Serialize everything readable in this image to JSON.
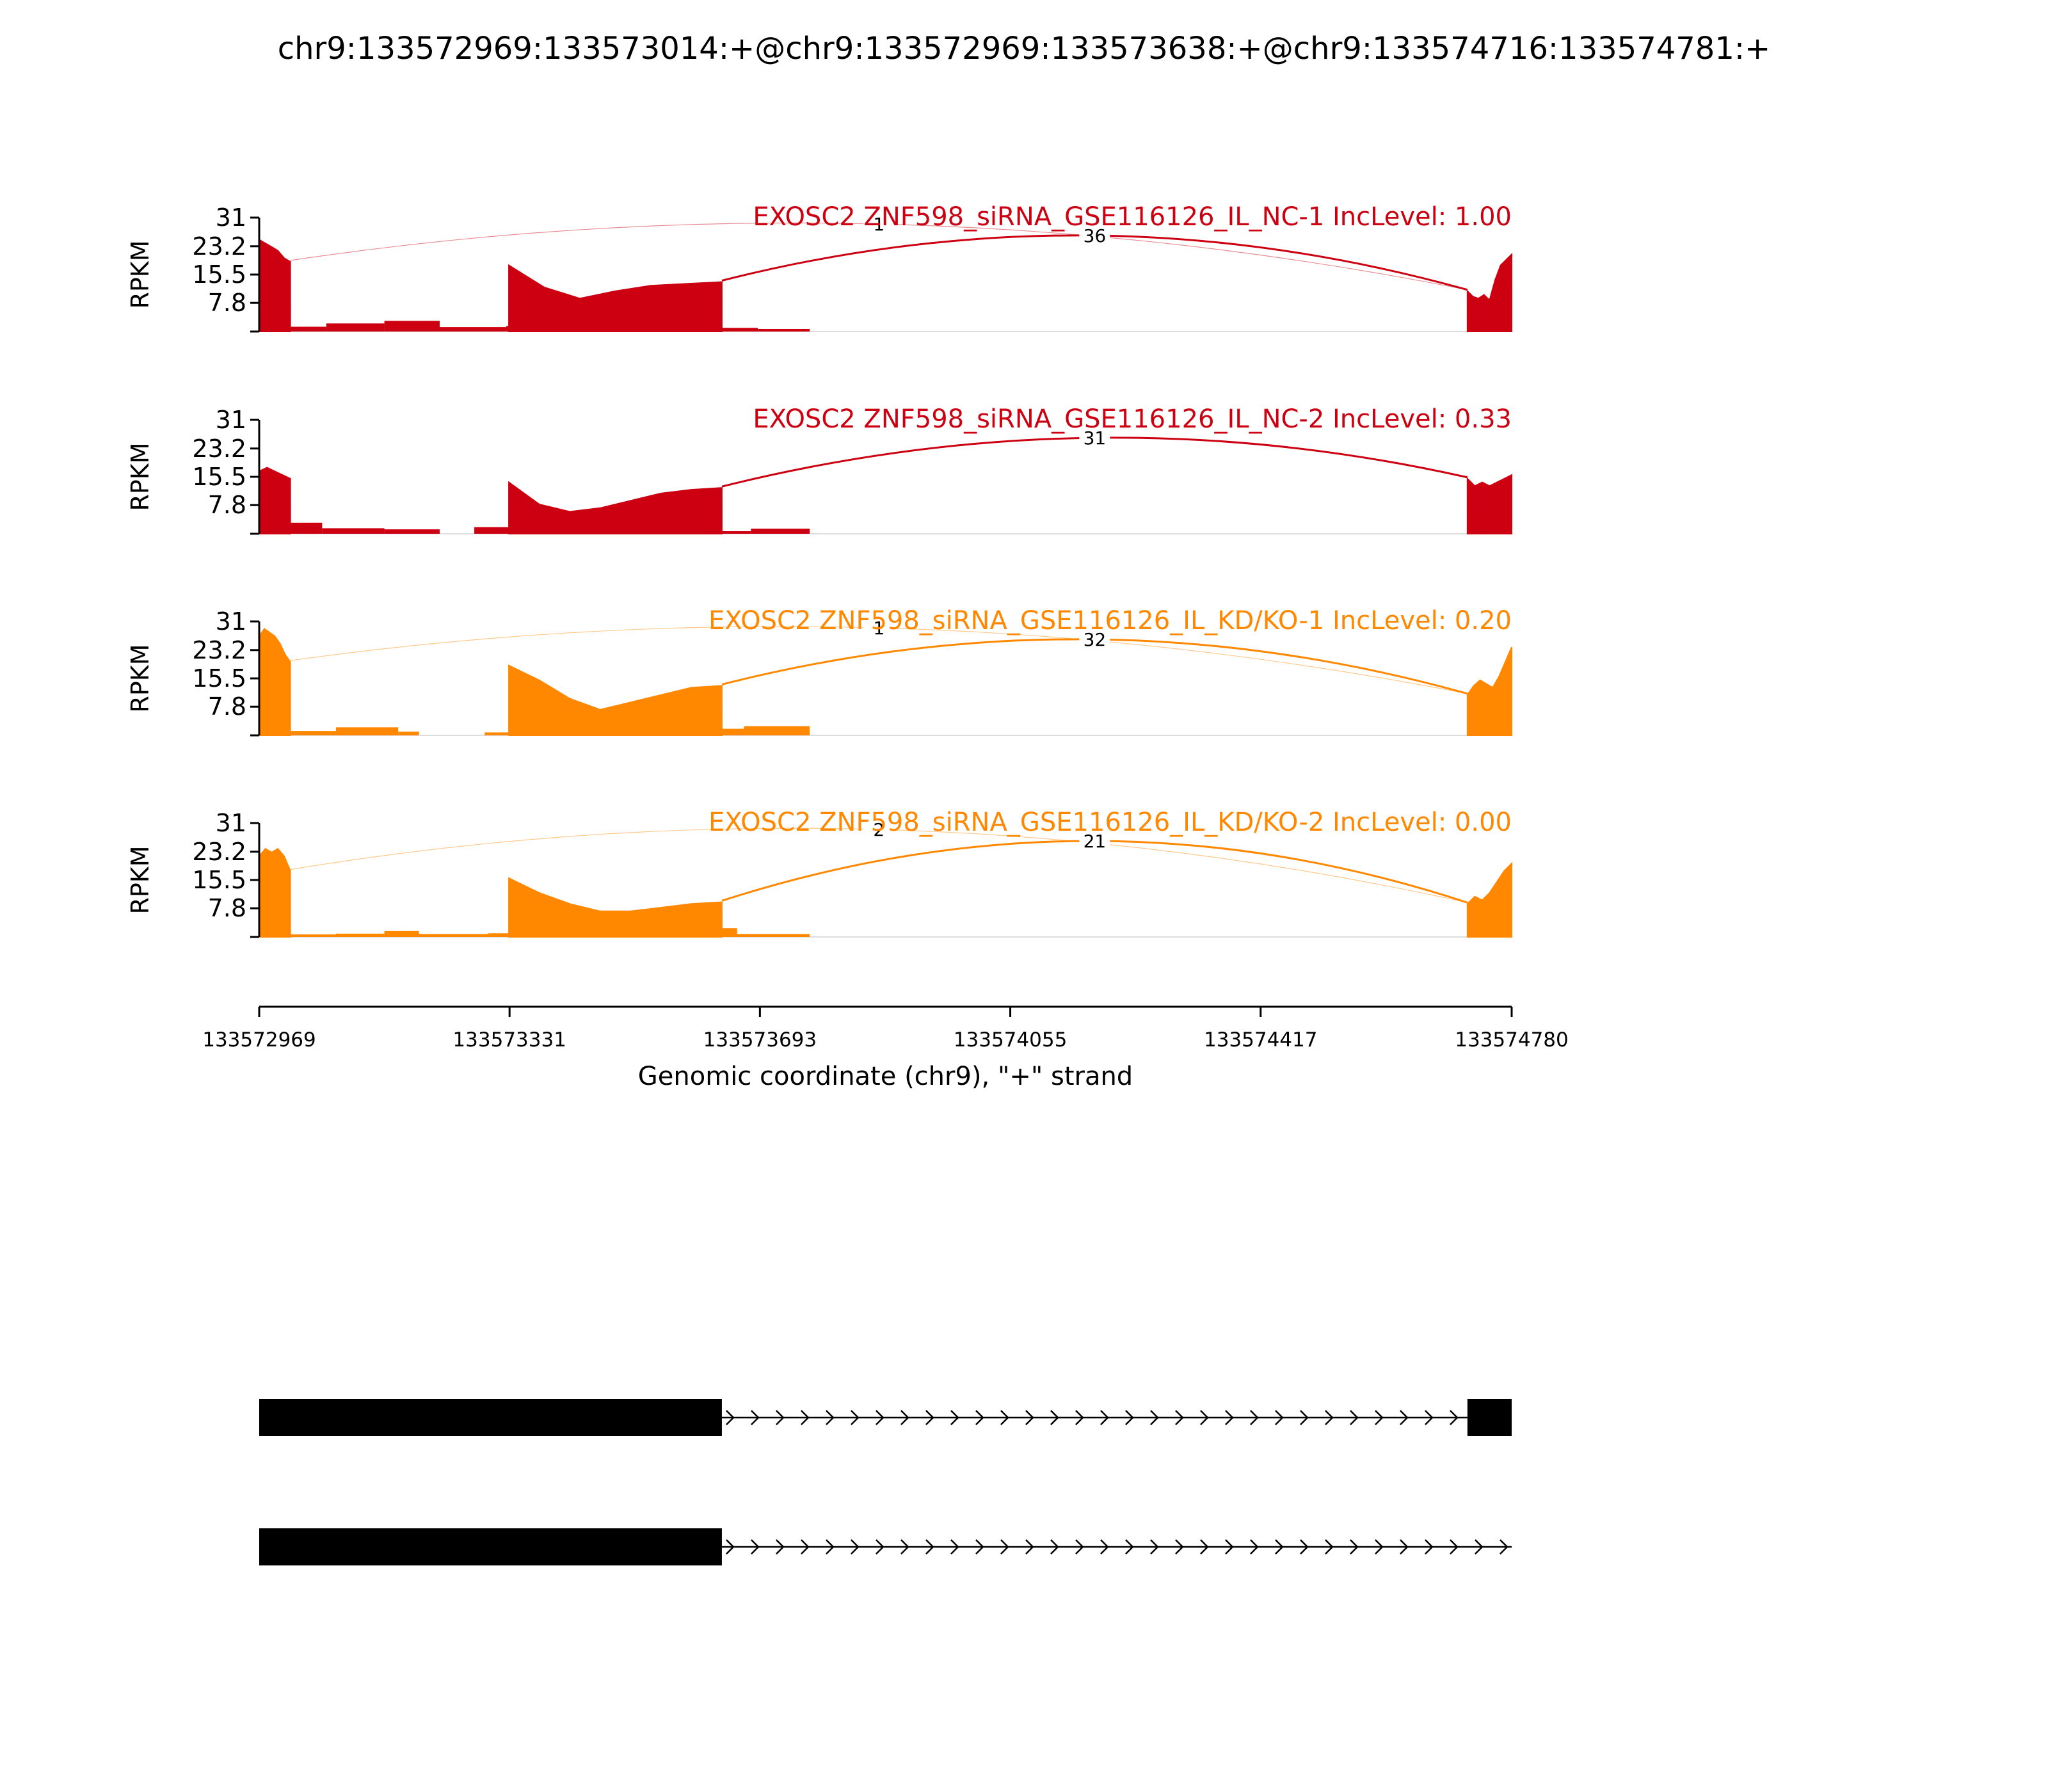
{
  "figure": {
    "title": "chr9:133572969:133573014:+@chr9:133572969:133573638:+@chr9:133574716:133574781:+"
  },
  "chart_data": {
    "type": "area",
    "x_axis": {
      "label": "Genomic coordinate (chr9), \"+\" strand",
      "range": [
        133572969,
        133574780
      ],
      "ticks": [
        133572969,
        133573331,
        133573693,
        133574055,
        133574417,
        133574780
      ],
      "tick_labels": [
        "133572969",
        "133573331",
        "133573693",
        "133574055",
        "133574417",
        "133574780"
      ]
    },
    "y_axis": {
      "label": "RPKM",
      "range": [
        0,
        31
      ],
      "ticks": [
        7.8,
        15.5,
        23.2,
        31
      ],
      "tick_labels": [
        "7.8",
        "15.5",
        "23.2",
        "31"
      ]
    },
    "exons": [
      {
        "start": 133572969,
        "end": 133573014
      },
      {
        "start": 133573330,
        "end": 133573638
      },
      {
        "start": 133574716,
        "end": 133574781
      }
    ],
    "series": [
      {
        "label": "EXOSC2 ZNF598_siRNA_GSE116126_IL_NC-1 IncLevel: 1.00",
        "color": "#cc0011",
        "exon_profiles": [
          [
            25,
            24,
            23,
            22,
            20,
            19
          ],
          [
            18,
            12,
            9,
            11,
            12.5,
            13,
            13.5
          ],
          [
            11,
            9.5,
            9,
            10,
            8.5,
            14,
            18,
            19.5,
            21
          ]
        ],
        "gap_segments": [
          {
            "start": 133573014,
            "end": 133573066,
            "value": 1.3
          },
          {
            "start": 133573066,
            "end": 133573150,
            "value": 2.2
          },
          {
            "start": 133573150,
            "end": 133573230,
            "value": 2.9
          },
          {
            "start": 133573230,
            "end": 133573326,
            "value": 1.2
          },
          {
            "start": 133573326,
            "end": 133573420,
            "value": 1.5
          },
          {
            "start": 133573420,
            "end": 133573500,
            "value": 2.4
          },
          {
            "start": 133573500,
            "end": 133573560,
            "value": 2.8
          },
          {
            "start": 133573560,
            "end": 133573620,
            "value": 0.9
          },
          {
            "start": 133573620,
            "end": 133573690,
            "value": 1.0
          },
          {
            "start": 133573690,
            "end": 133573765,
            "value": 0.7
          }
        ],
        "junctions": [
          {
            "from": 133573014,
            "to": 133574716,
            "count": 1,
            "side": "top"
          },
          {
            "from": 133573638,
            "to": 133574716,
            "count": 36,
            "side": "top"
          }
        ]
      },
      {
        "label": "EXOSC2 ZNF598_siRNA_GSE116126_IL_NC-2 IncLevel: 0.33",
        "color": "#cc0011",
        "exon_profiles": [
          [
            17,
            18,
            17,
            16,
            15
          ],
          [
            14,
            8,
            6,
            7,
            9,
            11,
            12,
            12.5
          ],
          [
            15,
            13,
            14,
            13,
            14,
            15,
            16
          ]
        ],
        "gap_segments": [
          {
            "start": 133573014,
            "end": 133573060,
            "value": 3.0
          },
          {
            "start": 133573060,
            "end": 133573150,
            "value": 1.5
          },
          {
            "start": 133573150,
            "end": 133573230,
            "value": 1.2
          },
          {
            "start": 133573280,
            "end": 133573400,
            "value": 1.8
          },
          {
            "start": 133573400,
            "end": 133573500,
            "value": 1.0
          },
          {
            "start": 133573500,
            "end": 133573600,
            "value": 0.6
          },
          {
            "start": 133573600,
            "end": 133573680,
            "value": 0.7
          },
          {
            "start": 133573680,
            "end": 133573765,
            "value": 1.4
          }
        ],
        "junctions": [
          {
            "from": 133573638,
            "to": 133574716,
            "count": 31,
            "side": "top"
          }
        ]
      },
      {
        "label": "EXOSC2 ZNF598_siRNA_GSE116126_IL_KD/KO-1 IncLevel: 0.20",
        "color": "#ff8800",
        "exon_profiles": [
          [
            27,
            29,
            28,
            27,
            25,
            22,
            20
          ],
          [
            19,
            15,
            10,
            7,
            9,
            11,
            13,
            13.5
          ],
          [
            11,
            13.5,
            15,
            14,
            13,
            16,
            20,
            24
          ]
        ],
        "gap_segments": [
          {
            "start": 133573014,
            "end": 133573080,
            "value": 1.2
          },
          {
            "start": 133573080,
            "end": 133573170,
            "value": 2.2
          },
          {
            "start": 133573170,
            "end": 133573200,
            "value": 1.0
          },
          {
            "start": 133573295,
            "end": 133573460,
            "value": 0.8
          },
          {
            "start": 133573460,
            "end": 133573580,
            "value": 1.2
          },
          {
            "start": 133573580,
            "end": 133573670,
            "value": 1.8
          },
          {
            "start": 133573670,
            "end": 133573765,
            "value": 2.5
          }
        ],
        "junctions": [
          {
            "from": 133573014,
            "to": 133574716,
            "count": 1,
            "side": "top"
          },
          {
            "from": 133573638,
            "to": 133574716,
            "count": 32,
            "side": "top"
          }
        ]
      },
      {
        "label": "EXOSC2 ZNF598_siRNA_GSE116126_IL_KD/KO-2 IncLevel: 0.00",
        "color": "#ff8800",
        "exon_profiles": [
          [
            22,
            24,
            23,
            24,
            22,
            18
          ],
          [
            16,
            12,
            9,
            7,
            7,
            8,
            9,
            9.5
          ],
          [
            9,
            11,
            10,
            12,
            15,
            18,
            20
          ]
        ],
        "gap_segments": [
          {
            "start": 133573014,
            "end": 133573080,
            "value": 0.7
          },
          {
            "start": 133573080,
            "end": 133573150,
            "value": 0.9
          },
          {
            "start": 133573150,
            "end": 133573200,
            "value": 1.6
          },
          {
            "start": 133573200,
            "end": 133573300,
            "value": 0.8
          },
          {
            "start": 133573300,
            "end": 133573430,
            "value": 1.0
          },
          {
            "start": 133573430,
            "end": 133573500,
            "value": 0.6
          },
          {
            "start": 133573500,
            "end": 133573560,
            "value": 1.6
          },
          {
            "start": 133573560,
            "end": 133573660,
            "value": 2.4
          },
          {
            "start": 133573660,
            "end": 133573765,
            "value": 0.8
          }
        ],
        "junctions": [
          {
            "from": 133573014,
            "to": 133574716,
            "count": 2,
            "side": "top"
          },
          {
            "from": 133573638,
            "to": 133574716,
            "count": 21,
            "side": "top"
          }
        ]
      }
    ],
    "transcripts": [
      {
        "exons": [
          {
            "start": 133572969,
            "end": 133573638
          },
          {
            "start": 133574716,
            "end": 133574780
          }
        ],
        "strand": "+"
      },
      {
        "exons": [
          {
            "start": 133572969,
            "end": 133573638
          }
        ],
        "intron_end": 133574780,
        "strand": "+"
      }
    ]
  }
}
